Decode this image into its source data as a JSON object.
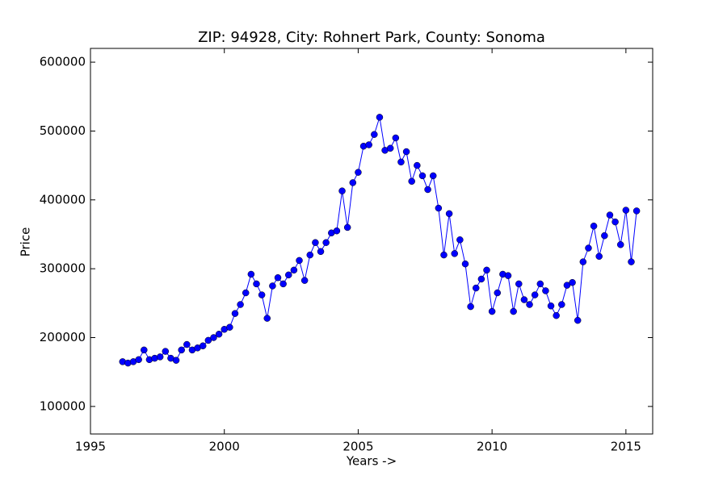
{
  "chart_data": {
    "type": "line",
    "title": "ZIP: 94928, City: Rohnert Park, County: Sonoma",
    "xlabel": "Years ->",
    "ylabel": "Price",
    "xlim": [
      1995,
      2016
    ],
    "xticks": [
      1995,
      2000,
      2005,
      2010,
      2015
    ],
    "ylim": [
      60000,
      620000
    ],
    "yticks": [
      100000,
      200000,
      300000,
      400000,
      500000,
      600000
    ],
    "grid": false,
    "series": [
      {
        "name": "Price",
        "color": "#0000ff",
        "x": [
          1996.2,
          1996.4,
          1996.6,
          1996.8,
          1997.0,
          1997.2,
          1997.4,
          1997.6,
          1997.8,
          1998.0,
          1998.2,
          1998.4,
          1998.6,
          1998.8,
          1999.0,
          1999.2,
          1999.4,
          1999.6,
          1999.8,
          2000.0,
          2000.2,
          2000.4,
          2000.6,
          2000.8,
          2001.0,
          2001.2,
          2001.4,
          2001.6,
          2001.8,
          2002.0,
          2002.2,
          2002.4,
          2002.6,
          2002.8,
          2003.0,
          2003.2,
          2003.4,
          2003.6,
          2003.8,
          2004.0,
          2004.2,
          2004.4,
          2004.6,
          2004.8,
          2005.0,
          2005.2,
          2005.4,
          2005.6,
          2005.8,
          2006.0,
          2006.2,
          2006.4,
          2006.6,
          2006.8,
          2007.0,
          2007.2,
          2007.4,
          2007.6,
          2007.8,
          2008.0,
          2008.2,
          2008.4,
          2008.6,
          2008.8,
          2009.0,
          2009.2,
          2009.4,
          2009.6,
          2009.8,
          2010.0,
          2010.2,
          2010.4,
          2010.6,
          2010.8,
          2011.0,
          2011.2,
          2011.4,
          2011.6,
          2011.8,
          2012.0,
          2012.2,
          2012.4,
          2012.6,
          2012.8,
          2013.0,
          2013.2,
          2013.4,
          2013.6,
          2013.8,
          2014.0,
          2014.2,
          2014.4,
          2014.6,
          2014.8,
          2015.0,
          2015.2,
          2015.4
        ],
        "values": [
          165000,
          163000,
          165000,
          168000,
          182000,
          168000,
          170000,
          172000,
          180000,
          170000,
          167000,
          182000,
          190000,
          182000,
          185000,
          188000,
          196000,
          200000,
          205000,
          212000,
          215000,
          235000,
          248000,
          265000,
          292000,
          278000,
          262000,
          228000,
          275000,
          287000,
          278000,
          291000,
          298000,
          312000,
          283000,
          320000,
          338000,
          325000,
          338000,
          352000,
          355000,
          413000,
          360000,
          425000,
          440000,
          478000,
          480000,
          495000,
          520000,
          472000,
          475000,
          490000,
          455000,
          470000,
          427000,
          450000,
          435000,
          415000,
          435000,
          388000,
          320000,
          380000,
          322000,
          342000,
          307000,
          245000,
          272000,
          285000,
          298000,
          238000,
          265000,
          292000,
          290000,
          238000,
          278000,
          255000,
          248000,
          262000,
          278000,
          268000,
          246000,
          232000,
          248000,
          276000,
          280000,
          225000,
          310000,
          330000,
          362000,
          318000,
          348000,
          378000,
          368000,
          335000,
          385000,
          310000,
          384000
        ]
      }
    ]
  }
}
